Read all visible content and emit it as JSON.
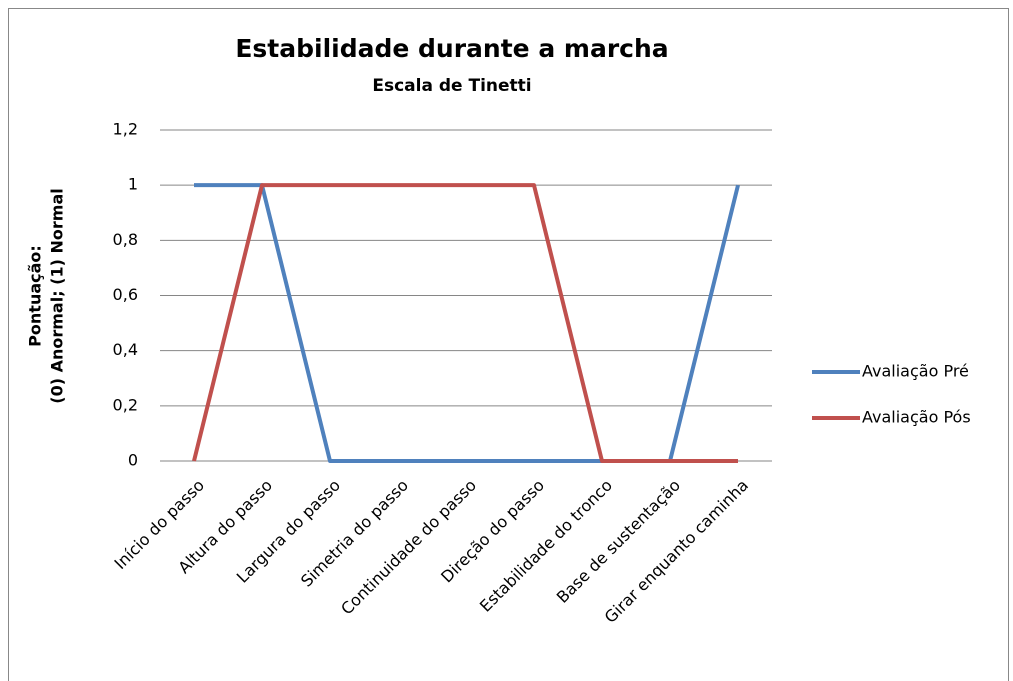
{
  "chart_data": {
    "type": "line",
    "title": "Estabilidade durante a marcha",
    "subtitle": "Escala de Tinetti",
    "ylabel_lines": [
      "Pontuação:",
      "(0) Anormal; (1) Normal"
    ],
    "categories": [
      "Início do passo",
      "Altura do passo",
      "Largura do passo",
      "Simetria do passo",
      "Continuidade do passo",
      "Direção do passo",
      "Estabilidade do tronco",
      "Base de sustentação",
      "Girar enquanto caminha"
    ],
    "series": [
      {
        "name": "Avaliação Pré",
        "color": "#4f81bd",
        "values": [
          1,
          1,
          0,
          0,
          0,
          0,
          0,
          0,
          1
        ]
      },
      {
        "name": "Avaliação Pós",
        "color": "#c0504d",
        "values": [
          0,
          1,
          1,
          1,
          1,
          1,
          0,
          0,
          0
        ]
      }
    ],
    "ylim": [
      0,
      1.2
    ],
    "yticks": [
      0,
      {
        "value": 0.2,
        "label": "0,2"
      },
      {
        "value": 0.4,
        "label": "0,4"
      },
      {
        "value": 0.6,
        "label": "0,6"
      },
      {
        "value": 0.8,
        "label": "0,8"
      },
      1,
      {
        "value": 1.2,
        "label": "1,2"
      }
    ],
    "grid": true,
    "legend": "right"
  }
}
